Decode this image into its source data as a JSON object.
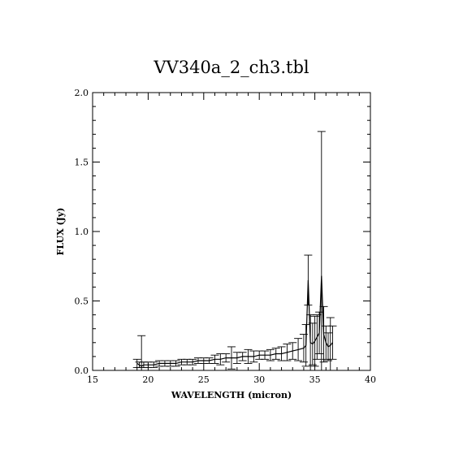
{
  "chart_data": {
    "type": "line",
    "title": "VV340a_2_ch3.tbl",
    "xlabel": "WAVELENGTH (micron)",
    "ylabel": "FLUX (Jy)",
    "xlim": [
      15,
      40
    ],
    "ylim": [
      0,
      2.0
    ],
    "xticks": [
      15,
      20,
      25,
      30,
      35,
      40
    ],
    "xtick_labels": [
      "15",
      "20",
      "25",
      "30",
      "35",
      "40"
    ],
    "yticks": [
      0,
      0.5,
      1.0,
      1.5,
      2.0
    ],
    "ytick_labels": [
      "0.0",
      "0.5",
      "1.0",
      "1.5",
      "2.0"
    ],
    "grid": false,
    "series": [
      {
        "x": [
          19.0,
          19.2,
          19.4,
          19.6,
          20.0,
          20.5,
          21.0,
          21.5,
          22.0,
          22.5,
          23.0,
          23.5,
          24.0,
          24.5,
          25.0,
          25.5,
          26.0,
          26.5,
          27.0,
          27.5,
          28.0,
          28.5,
          29.0,
          29.5,
          30.0,
          30.5,
          31.0,
          31.5,
          32.0,
          32.5,
          33.0,
          33.5,
          34.0,
          34.2,
          34.4,
          34.6,
          34.8,
          35.0,
          35.2,
          35.4,
          35.6,
          35.8,
          36.0,
          36.2,
          36.4,
          36.6
        ],
        "y": [
          0.05,
          0.04,
          0.03,
          0.04,
          0.04,
          0.04,
          0.05,
          0.05,
          0.05,
          0.05,
          0.06,
          0.06,
          0.06,
          0.07,
          0.07,
          0.07,
          0.08,
          0.08,
          0.09,
          0.09,
          0.09,
          0.1,
          0.1,
          0.1,
          0.11,
          0.11,
          0.11,
          0.12,
          0.12,
          0.13,
          0.14,
          0.15,
          0.16,
          0.18,
          0.65,
          0.2,
          0.19,
          0.21,
          0.24,
          0.27,
          0.68,
          0.26,
          0.2,
          0.17,
          0.18,
          0.2
        ],
        "yerr": [
          0.03,
          0.02,
          0.22,
          0.02,
          0.02,
          0.02,
          0.02,
          0.02,
          0.02,
          0.02,
          0.02,
          0.02,
          0.02,
          0.02,
          0.02,
          0.02,
          0.03,
          0.04,
          0.03,
          0.08,
          0.04,
          0.03,
          0.05,
          0.04,
          0.03,
          0.03,
          0.04,
          0.04,
          0.05,
          0.06,
          0.06,
          0.08,
          0.1,
          0.15,
          0.18,
          0.2,
          0.15,
          0.18,
          0.16,
          0.15,
          1.04,
          0.2,
          0.12,
          0.1,
          0.2,
          0.12
        ]
      }
    ]
  }
}
